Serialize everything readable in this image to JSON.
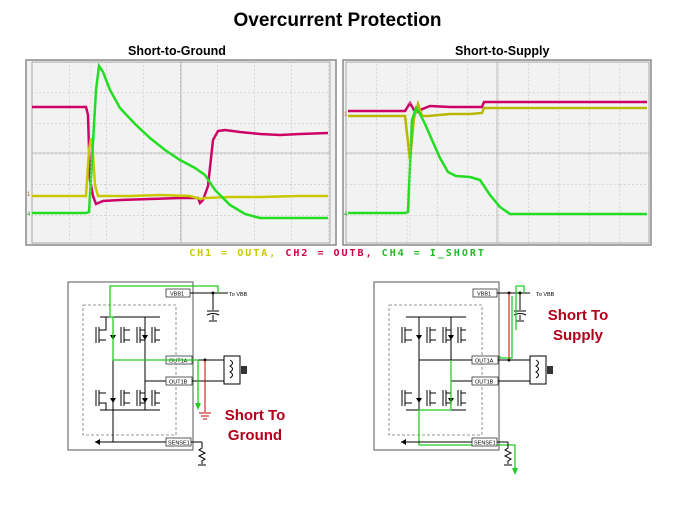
{
  "title": "Overcurrent Protection",
  "scopes": {
    "left_label": "Short-to-Ground",
    "right_label": "Short-to-Supply"
  },
  "legend": {
    "ch1": "CH1 = OUTA,",
    "ch2": "CH2 = OUTB,",
    "ch4": "CH4 = I_SHORT",
    "colors": {
      "ch1": "#c8c800",
      "ch2": "#c8005a",
      "ch4": "#22cc22"
    }
  },
  "circuits": {
    "left": {
      "vbb": "VBB1",
      "to_vbb": "To VBB",
      "out1a": "OUT1A",
      "out1b": "OUT1B",
      "sense": "SENSE1",
      "callout_line1": "Short To",
      "callout_line2": "Ground"
    },
    "right": {
      "vbb": "VBB1",
      "to_vbb": "To VBB",
      "out1a": "OUT1A",
      "out1b": "OUT1B",
      "sense": "SENSE1",
      "callout_line1": "Short To",
      "callout_line2": "Supply"
    }
  }
}
